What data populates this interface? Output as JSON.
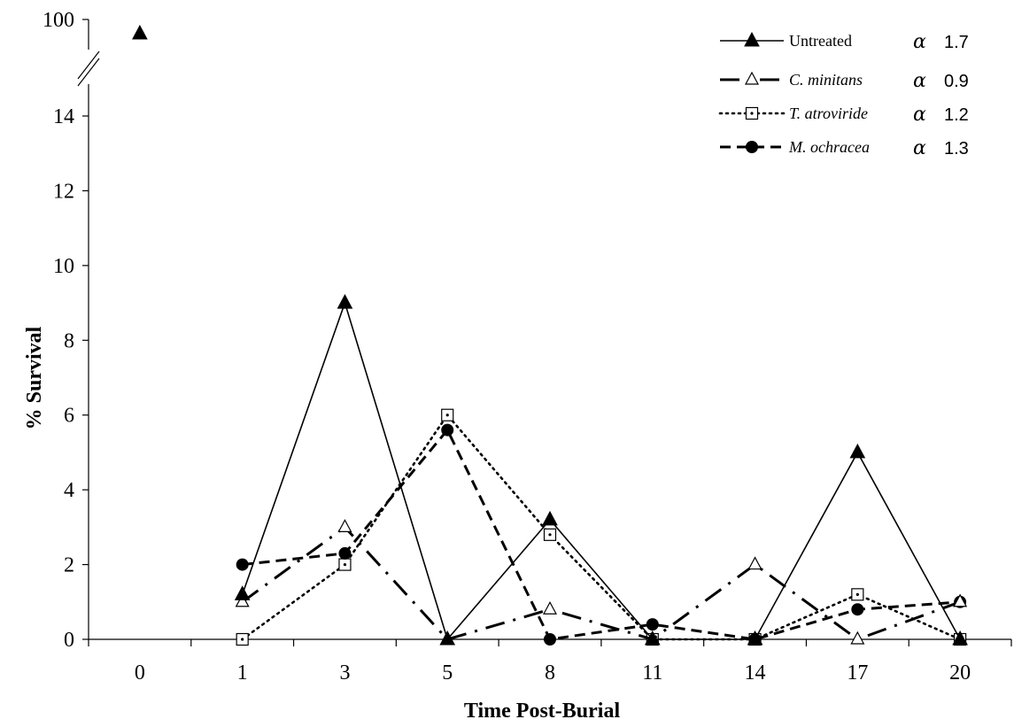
{
  "chart_data": {
    "type": "line",
    "xlabel": "Time Post-Burial",
    "ylabel": "% Survival",
    "categories": [
      "0",
      "1",
      "3",
      "5",
      "8",
      "11",
      "14",
      "17",
      "20"
    ],
    "y_ticks": [
      "0",
      "2",
      "4",
      "6",
      "8",
      "10",
      "12",
      "14"
    ],
    "y_break_tick": "100",
    "ylim": [
      0,
      14
    ],
    "axis_break": {
      "lower_max": 14,
      "upper_value": 100
    },
    "grid": false,
    "legend_position": "top-right",
    "series": [
      {
        "name": "Untreated",
        "alpha_symbol": "α",
        "alpha_value": "1.7",
        "marker": "filled-triangle",
        "line_style": "solid",
        "values": [
          97,
          1.2,
          9.0,
          0,
          3.2,
          0,
          0,
          5.0,
          0
        ]
      },
      {
        "name": "C. minitans",
        "alpha_symbol": "α",
        "alpha_value": "0.9",
        "marker": "open-triangle",
        "line_style": "dash-dot",
        "values": [
          null,
          1.0,
          3.0,
          0,
          0.8,
          0,
          2.0,
          0,
          1.0
        ]
      },
      {
        "name": "T. atroviride",
        "alpha_symbol": "α",
        "alpha_value": "1.2",
        "marker": "dotted-square",
        "line_style": "dotted",
        "values": [
          null,
          0,
          2.0,
          6.0,
          2.8,
          0,
          0,
          1.2,
          0
        ]
      },
      {
        "name": "M. ochracea",
        "alpha_symbol": "α",
        "alpha_value": "1.3",
        "marker": "filled-circle",
        "line_style": "dashed",
        "values": [
          null,
          2.0,
          2.3,
          5.6,
          0,
          0.4,
          0,
          0.8,
          1.0
        ]
      }
    ]
  }
}
